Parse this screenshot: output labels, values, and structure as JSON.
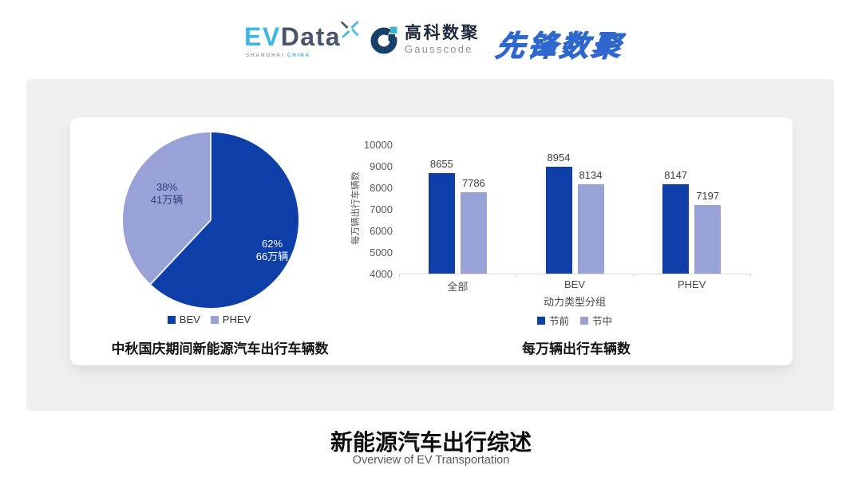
{
  "header": {
    "evdata": {
      "ev": "EV",
      "data": "Data",
      "sub_left": "SHANGHAI",
      "sub_right": "CHINA"
    },
    "gausscode": {
      "cn": "高科数聚",
      "en": "Gausscode"
    },
    "xianfeng": {
      "text": "先锋数聚"
    }
  },
  "colors": {
    "primary": "#0E3FA8",
    "secondary": "#98A2D6",
    "panel": "#EFEFEF"
  },
  "chart_data": [
    {
      "type": "pie",
      "title": "中秋国庆期间新能源汽车出行车辆数",
      "legend": [
        "BEV",
        "PHEV"
      ],
      "slices": [
        {
          "name": "BEV",
          "percent": 62,
          "percent_label": "62%",
          "value_label": "66万辆"
        },
        {
          "name": "PHEV",
          "percent": 38,
          "percent_label": "38%",
          "value_label": "41万辆"
        }
      ]
    },
    {
      "type": "bar",
      "title": "每万辆出行车辆数",
      "categories": [
        "全部",
        "BEV",
        "PHEV"
      ],
      "series": [
        {
          "name": "节前",
          "values": [
            8655,
            8954,
            8147
          ]
        },
        {
          "name": "节中",
          "values": [
            7786,
            8134,
            7197
          ]
        }
      ],
      "ylabel": "每万辆出行车辆数",
      "xlabel": "动力类型分组",
      "ylim": [
        4000,
        10000
      ],
      "yticks": [
        4000,
        5000,
        6000,
        7000,
        8000,
        9000,
        10000
      ],
      "legend_position": "bottom",
      "grid": false
    }
  ],
  "footer": {
    "title": "新能源汽车出行综述",
    "subtitle": "Overview of EV Transportation"
  }
}
